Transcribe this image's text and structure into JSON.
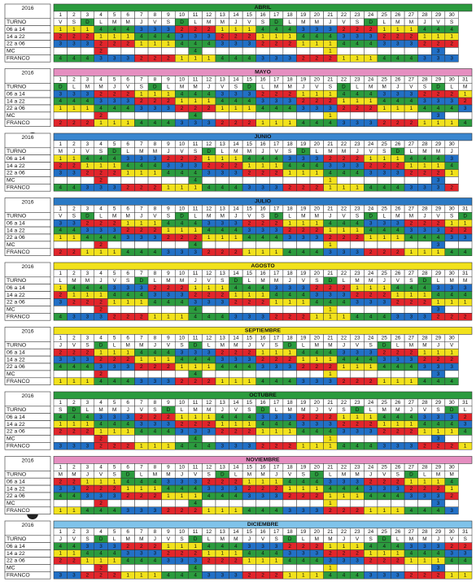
{
  "year": "2016",
  "row_labels": [
    "TURNO",
    "06 a 14",
    "14 a 22",
    "22 a 06",
    "MC",
    "FRANCO"
  ],
  "days": [
    1,
    2,
    3,
    4,
    5,
    6,
    7,
    8,
    9,
    10,
    11,
    12,
    13,
    14,
    15,
    16,
    17,
    18,
    19,
    20,
    21,
    22,
    23,
    24,
    25,
    26,
    27,
    28,
    29,
    30,
    31
  ],
  "value_colors": {
    "1": "#f2e21c",
    "2": "#e2252b",
    "3": "#2270c6",
    "4": "#2b9b3e"
  },
  "highlight_day": "D",
  "highlight_color": "#2b9b3e",
  "months": [
    {
      "name": "ABRIL",
      "color": "#2b9b3e",
      "weekdays": "VSDLMMJVSDLMMJVSDLMMJVSDLMMJVS",
      "rows": [
        "111444333222111444333222111444",
        "222111444333222111444333222111",
        "333222111444333222111444333222",
        "   2      4         1       3 ",
        "444333222111444333222111444333"
      ]
    },
    {
      "name": "MAYO",
      "color": "#e58ec0",
      "weekdays": "DLMMJVSDLMMJVSDLMMJVSDLMMJVSDLM",
      "rows": [
        "3332221114443332221114443332221",
        "4443332221114443332221114443332",
        "1114443332221114443332221114443",
        "   2      4         1       3  ",
        "2221114443332221114443332221114"
      ]
    },
    {
      "name": "JUNIO",
      "color": "#3a86cf",
      "weekdays": "MJVSDLMMJVSDLMMJVSDLMMJVSDLMMJ",
      "rows": [
        "114443332221114443332221114443",
        "221114443332221114443332221114",
        "332221114443332221114443332221",
        "   2      4         1       3 ",
        "443332221114443332221114443332"
      ]
    },
    {
      "name": "JULIO",
      "color": "#2a79c4",
      "weekdays": "VSDLMMJVSDLMMJVSDLMMJVSDLMMJVSD",
      "rows": [
        "3322211144433322211144433322211",
        "4433322211144433322211144433322",
        "1144433322211144433322211144433",
        "   2      4         1       3  ",
        "2211144433322211144433322211144"
      ]
    },
    {
      "name": "AGOSTO",
      "color": "#f2e21c",
      "weekdays": "LMMJVSDLMMJVSDLMMJVSDLMMJVSDLMM",
      "rows": [
        "1444333222111444333222111444333",
        "2111444333222111444333222111444",
        "3222111444333222111444333222111",
        "   2      4         1       3  ",
        "4333222111444333222111444333222"
      ]
    },
    {
      "name": "SEPTIEMBRE",
      "color": "#f2e21c",
      "weekdays": "JVSDLMMJVSDLMMJVSDLMMJVSDLMMJV",
      "rows": [
        "222111444333222111444333222111",
        "333222111444333222111444333222",
        "444333222111444333222111444333",
        "   2      4         1       3 ",
        "111444333222111444333222111444"
      ]
    },
    {
      "name": "OCTUBRE",
      "color": "#2b9b3e",
      "weekdays": "SDLMMJVSDLMMJVSDLMMJVSDLMMJVSDL",
      "rows": [
        "4443332221114443332221114443332",
        "1114443332221114443332221114443",
        "2221114443332221114443332221114",
        "   2      4         1       3  ",
        "3332221114443332221114443332221"
      ]
    },
    {
      "name": "NOVIEMBRE",
      "color": "#e58ec0",
      "weekdays": "MMJVSDLMMJVSDLMMJVSDLMMJVSDLMM",
      "rows": [
        "221114443332221114443332221114",
        "332221114443332221114443332221",
        "443332221114443332221114443332",
        "   2      4         1       3 ",
        "114443332221114443332221114443"
      ]
    },
    {
      "name": "DICIEMBRE",
      "color": "#7fc3ea",
      "weekdays": "JVSDLMMJVSDLMMJVSDLMMJVSDLMMJVS",
      "rows": [
        "4433322211144433322211144433322",
        "1144433322211144433322211144433",
        "2211144433322211144433322211144",
        "   2      4         1       3  ",
        "3322211144433322211144433322211"
      ]
    }
  ]
}
